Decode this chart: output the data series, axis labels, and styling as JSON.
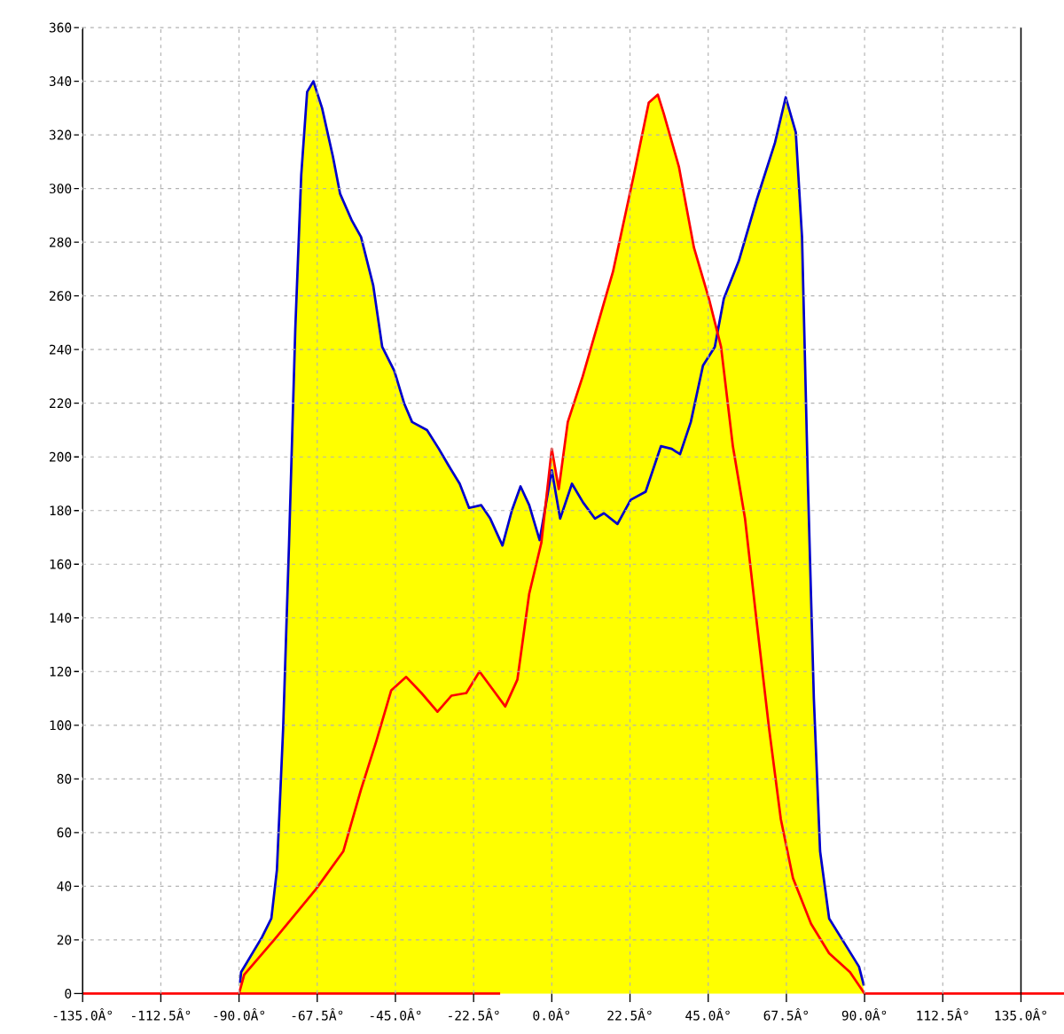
{
  "chart_data": {
    "type": "area",
    "xlim": [
      -135,
      135
    ],
    "xticks": [
      {
        "value": -135,
        "label": "-135.0Â°"
      },
      {
        "value": -112.5,
        "label": "-112.5Â°"
      },
      {
        "value": -90,
        "label": "-90.0Â°"
      },
      {
        "value": -67.5,
        "label": "-67.5Â°"
      },
      {
        "value": -45,
        "label": "-45.0Â°"
      },
      {
        "value": -22.5,
        "label": "-22.5Â°"
      },
      {
        "value": 0,
        "label": "0.0Â°"
      },
      {
        "value": 22.5,
        "label": "22.5Â°"
      },
      {
        "value": 45,
        "label": "45.0Â°"
      },
      {
        "value": 67.5,
        "label": "67.5Â°"
      },
      {
        "value": 90,
        "label": "90.0Â°"
      },
      {
        "value": 112.5,
        "label": "112.5Â°"
      },
      {
        "value": 135,
        "label": "135.0Â°"
      }
    ],
    "ylim": [
      0,
      360
    ],
    "yticks": [
      0,
      20,
      40,
      60,
      80,
      100,
      120,
      140,
      160,
      180,
      200,
      220,
      240,
      260,
      280,
      300,
      320,
      340,
      360
    ],
    "grid": true,
    "series": [
      {
        "color": "#ffff00",
        "x": [
          -90,
          -89.4,
          -83.4,
          -80.7,
          -79.1,
          -77.3,
          -75.6,
          -73.8,
          -72.1,
          -70.4,
          -68.6,
          -66.1,
          -63,
          -60.9,
          -57.5,
          -54.9,
          -51.4,
          -48.8,
          -45.3,
          -42.5,
          -40.2,
          -35.9,
          -32.5,
          -29.8,
          -26.5,
          -23.8,
          -20.3,
          -17.7,
          -14.2,
          -11.5,
          -9,
          -6.5,
          -3.5,
          0,
          2,
          4.6,
          8.9,
          17.6,
          23.6,
          27.9,
          30.5,
          32.2,
          36.6,
          40.9,
          45.2,
          47.6,
          49.5,
          53.8,
          59,
          64.2,
          67.3,
          70.2,
          72,
          73.7,
          75.4,
          77.2,
          79.8,
          84.1,
          88.4,
          90
        ],
        "values": [
          0,
          8,
          21,
          28,
          46,
          99,
          168,
          248,
          305,
          336,
          340,
          330,
          312,
          298,
          288,
          282,
          264,
          241,
          232,
          220,
          213,
          210,
          203,
          197,
          190,
          181,
          182,
          177,
          167,
          180,
          189,
          182,
          169,
          203,
          188,
          213,
          230,
          269,
          305,
          332,
          335,
          328,
          308,
          278,
          259,
          246,
          259,
          273,
          296,
          317,
          334,
          321,
          282,
          190,
          110,
          53,
          28,
          19,
          10,
          0
        ]
      },
      {
        "type": "line",
        "color": "#0000cc",
        "x": [
          -89.7,
          -89.4,
          -83.4,
          -80.7,
          -79.1,
          -77.3,
          -75.6,
          -73.8,
          -72.1,
          -70.4,
          -68.6,
          -66.1,
          -63,
          -60.9,
          -57.5,
          -54.9,
          -51.4,
          -48.8,
          -45.3,
          -42.5,
          -40.2,
          -35.9,
          -32.5,
          -29.8,
          -26.5,
          -23.8,
          -20.3,
          -17.7,
          -14.2,
          -11.5,
          -9,
          -6.5,
          -3.5,
          0,
          2.4,
          5.8,
          9,
          12.4,
          15,
          18.9,
          22.7,
          27,
          31.4,
          34.5,
          36.9,
          40,
          43.5,
          46.9,
          49.5,
          53.8,
          59,
          64.2,
          67.3,
          70.2,
          72,
          73.7,
          75.4,
          77.2,
          79.8,
          84.1,
          88.4,
          89.8
        ],
        "values": [
          4,
          8,
          21,
          28,
          46,
          99,
          168,
          248,
          305,
          336,
          340,
          330,
          312,
          298,
          288,
          282,
          264,
          241,
          232,
          220,
          213,
          210,
          203,
          197,
          190,
          181,
          182,
          177,
          167,
          180,
          189,
          182,
          169,
          195,
          177,
          190,
          183,
          177,
          179,
          175,
          184,
          187,
          204,
          203,
          201,
          213,
          234,
          241,
          259,
          273,
          296,
          317,
          334,
          321,
          282,
          190,
          110,
          53,
          28,
          19,
          10,
          3
        ]
      },
      {
        "type": "line",
        "color": "#ff0000",
        "x": [
          -135,
          -90,
          -88.5,
          -79.9,
          -67.8,
          -60,
          -54.9,
          -50.5,
          -46.2,
          -41.9,
          -37.5,
          -32.9,
          -28.9,
          -24.6,
          -20.8,
          -16.8,
          -13.4,
          -9.9,
          -6.5,
          -3,
          0,
          2,
          4.6,
          8.9,
          17.6,
          23.6,
          27.9,
          30.5,
          32.2,
          36.6,
          40.9,
          45.2,
          48.7,
          52.1,
          55.6,
          59,
          62.5,
          65.9,
          69.4,
          74.6,
          79.8,
          85.8,
          90,
          135
        ],
        "values": [
          0,
          0,
          7,
          20,
          39,
          53,
          76,
          94,
          113,
          118,
          112,
          105,
          111,
          112,
          120,
          113,
          107,
          117,
          149,
          168,
          203,
          188,
          213,
          230,
          269,
          305,
          332,
          335,
          328,
          308,
          278,
          259,
          241,
          204,
          177,
          138,
          99,
          65,
          43,
          26,
          15,
          8,
          0,
          0
        ]
      }
    ]
  }
}
